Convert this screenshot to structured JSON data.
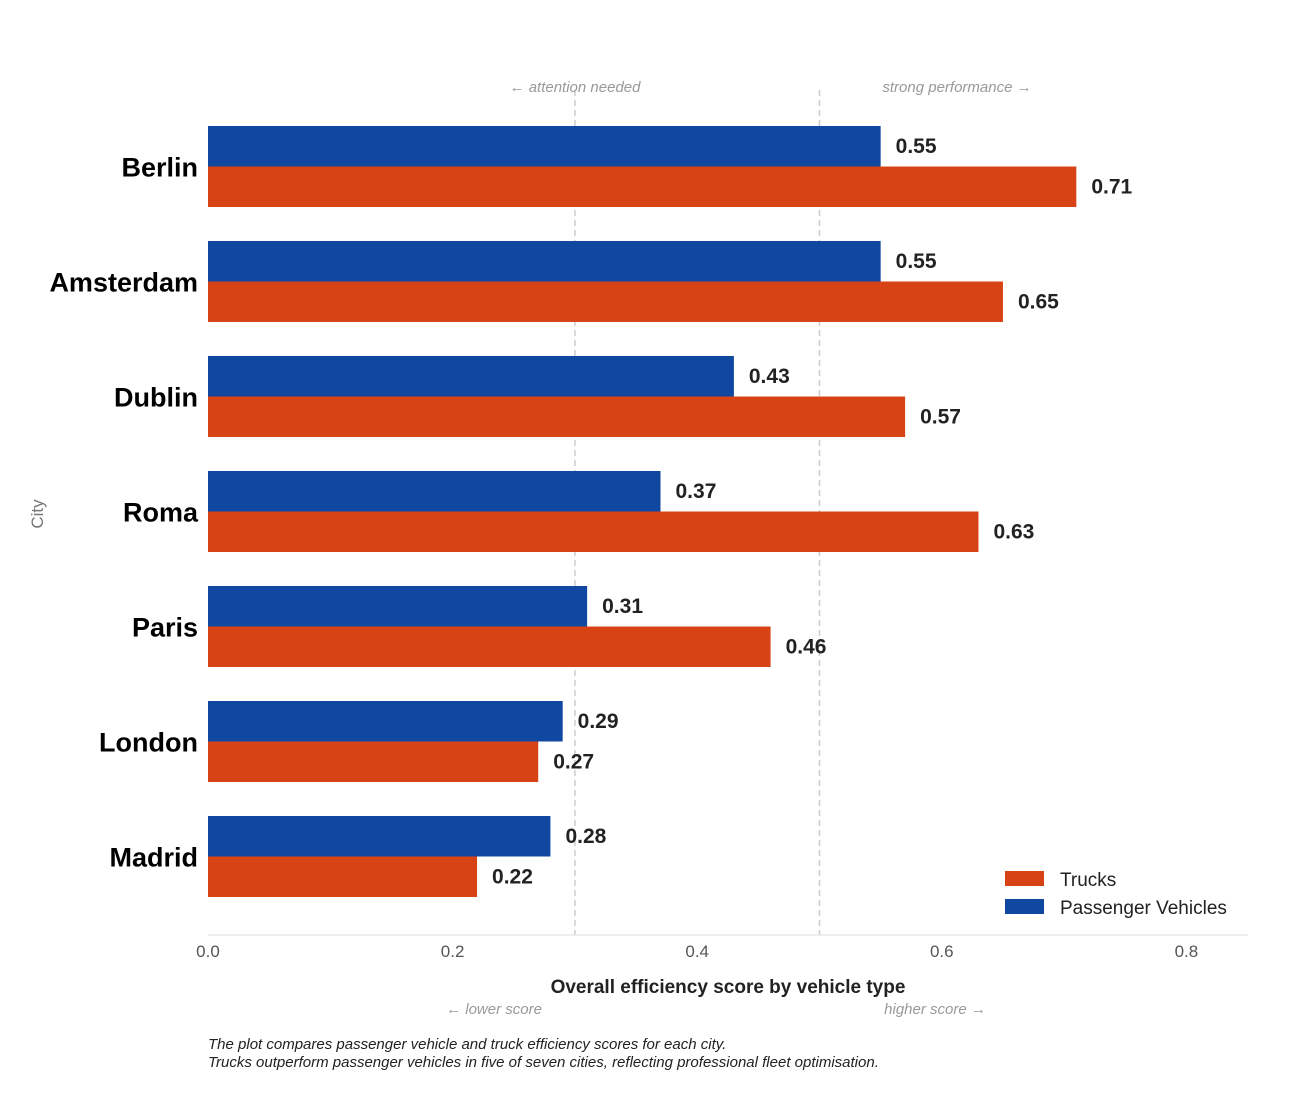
{
  "chart_data": {
    "type": "bar",
    "orientation": "horizontal",
    "categories": [
      "Berlin",
      "Amsterdam",
      "Dublin",
      "Roma",
      "Paris",
      "London",
      "Madrid"
    ],
    "series": [
      {
        "name": "Passenger Vehicles",
        "color": "#0f47a1",
        "values": [
          0.55,
          0.55,
          0.43,
          0.37,
          0.31,
          0.29,
          0.28
        ]
      },
      {
        "name": "Trucks",
        "color": "#d84315",
        "values": [
          0.71,
          0.65,
          0.57,
          0.63,
          0.46,
          0.27,
          0.22
        ]
      }
    ],
    "value_labels": {
      "passenger": [
        "0.55",
        "0.55",
        "0.43",
        "0.37",
        "0.31",
        "0.29",
        "0.28"
      ],
      "trucks": [
        "0.71",
        "0.65",
        "0.57",
        "0.63",
        "0.46",
        "0.27",
        "0.22"
      ]
    },
    "xlabel": "Overall efficiency score by vehicle type",
    "ylabel": "City",
    "xlim": [
      0,
      0.85
    ],
    "xticks": [
      0.0,
      0.2,
      0.4,
      0.6,
      0.8
    ],
    "xtick_labels": [
      "0.0",
      "0.2",
      "0.4",
      "0.6",
      "0.8"
    ],
    "reference_lines": [
      0.3,
      0.5
    ],
    "annotations": {
      "attention": "← attention needed",
      "strong": "strong performance →",
      "lower": "← lower score",
      "higher": "higher score →"
    },
    "legend": {
      "position": "bottom-right",
      "entries": [
        "Trucks",
        "Passenger Vehicles"
      ]
    },
    "caption": [
      "The plot compares passenger vehicle and truck efficiency scores for each city.",
      "Trucks outperform passenger vehicles in five of seven cities, reflecting professional fleet optimisation."
    ]
  }
}
